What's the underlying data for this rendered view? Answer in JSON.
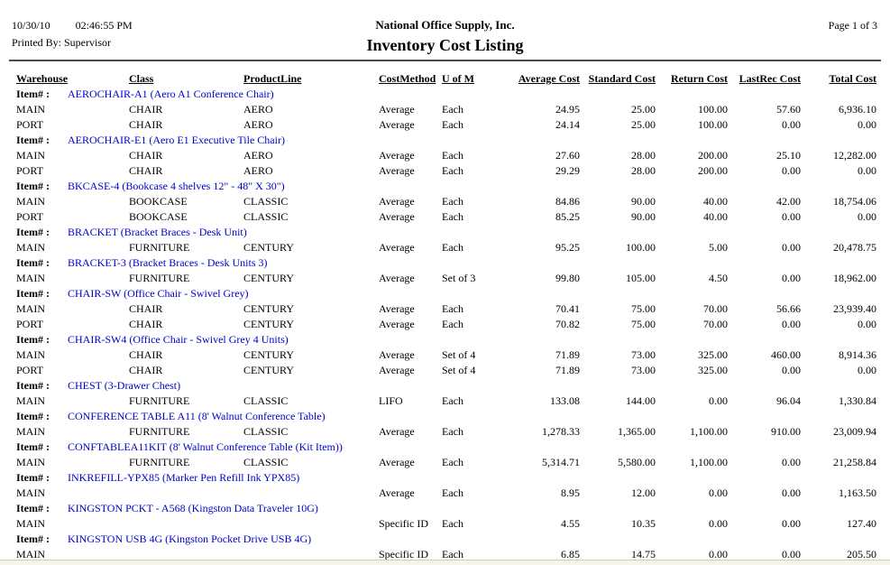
{
  "report": {
    "date": "10/30/10",
    "time": "02:46:55 PM",
    "printed_by": "Printed By: Supervisor",
    "company": "National Office Supply, Inc.",
    "title": "Inventory Cost Listing",
    "page": "Page 1 of 3"
  },
  "colors": {
    "link_blue": "#0000CC",
    "rule_gray": "#4a4a4a",
    "window_edge": "#f6f3e8"
  },
  "table": {
    "item_label": "Item# :",
    "columns": [
      "Warehouse",
      "Class",
      "ProductLine",
      "CostMethod",
      "U of M",
      "Average Cost",
      "Standard Cost",
      "Return Cost",
      "LastRec Cost",
      "Total Cost"
    ],
    "column_keys": [
      "warehouse",
      "class",
      "productline",
      "costmethod",
      "uofm",
      "average-cost",
      "standard-cost",
      "return-cost",
      "lastrec-cost",
      "total-cost"
    ],
    "groups": [
      {
        "code_desc": "AEROCHAIR-A1 (Aero A1 Conference Chair)",
        "rows": [
          [
            "MAIN",
            "CHAIR",
            "AERO",
            "Average",
            "Each",
            "24.95",
            "25.00",
            "100.00",
            "57.60",
            "6,936.10"
          ],
          [
            "PORT",
            "CHAIR",
            "AERO",
            "Average",
            "Each",
            "24.14",
            "25.00",
            "100.00",
            "0.00",
            "0.00"
          ]
        ]
      },
      {
        "code_desc": "AEROCHAIR-E1 (Aero E1 Executive Tile Chair)",
        "rows": [
          [
            "MAIN",
            "CHAIR",
            "AERO",
            "Average",
            "Each",
            "27.60",
            "28.00",
            "200.00",
            "25.10",
            "12,282.00"
          ],
          [
            "PORT",
            "CHAIR",
            "AERO",
            "Average",
            "Each",
            "29.29",
            "28.00",
            "200.00",
            "0.00",
            "0.00"
          ]
        ]
      },
      {
        "code_desc": "BKCASE-4 (Bookcase 4 shelves 12\" - 48\" X 30\")",
        "rows": [
          [
            "MAIN",
            "BOOKCASE",
            "CLASSIC",
            "Average",
            "Each",
            "84.86",
            "90.00",
            "40.00",
            "42.00",
            "18,754.06"
          ],
          [
            "PORT",
            "BOOKCASE",
            "CLASSIC",
            "Average",
            "Each",
            "85.25",
            "90.00",
            "40.00",
            "0.00",
            "0.00"
          ]
        ]
      },
      {
        "code_desc": "BRACKET (Bracket Braces - Desk Unit)",
        "rows": [
          [
            "MAIN",
            "FURNITURE",
            "CENTURY",
            "Average",
            "Each",
            "95.25",
            "100.00",
            "5.00",
            "0.00",
            "20,478.75"
          ]
        ]
      },
      {
        "code_desc": "BRACKET-3 (Bracket Braces - Desk Units 3)",
        "rows": [
          [
            "MAIN",
            "FURNITURE",
            "CENTURY",
            "Average",
            "Set of 3",
            "99.80",
            "105.00",
            "4.50",
            "0.00",
            "18,962.00"
          ]
        ]
      },
      {
        "code_desc": "CHAIR-SW (Office Chair - Swivel Grey)",
        "rows": [
          [
            "MAIN",
            "CHAIR",
            "CENTURY",
            "Average",
            "Each",
            "70.41",
            "75.00",
            "70.00",
            "56.66",
            "23,939.40"
          ],
          [
            "PORT",
            "CHAIR",
            "CENTURY",
            "Average",
            "Each",
            "70.82",
            "75.00",
            "70.00",
            "0.00",
            "0.00"
          ]
        ]
      },
      {
        "code_desc": "CHAIR-SW4 (Office Chair - Swivel Grey 4 Units)",
        "rows": [
          [
            "MAIN",
            "CHAIR",
            "CENTURY",
            "Average",
            "Set of 4",
            "71.89",
            "73.00",
            "325.00",
            "460.00",
            "8,914.36"
          ],
          [
            "PORT",
            "CHAIR",
            "CENTURY",
            "Average",
            "Set of 4",
            "71.89",
            "73.00",
            "325.00",
            "0.00",
            "0.00"
          ]
        ]
      },
      {
        "code_desc": "CHEST (3-Drawer Chest)",
        "rows": [
          [
            "MAIN",
            "FURNITURE",
            "CLASSIC",
            "LIFO",
            "Each",
            "133.08",
            "144.00",
            "0.00",
            "96.04",
            "1,330.84"
          ]
        ]
      },
      {
        "code_desc": "CONFERENCE TABLE A11 (8' Walnut Conference Table)",
        "rows": [
          [
            "MAIN",
            "FURNITURE",
            "CLASSIC",
            "Average",
            "Each",
            "1,278.33",
            "1,365.00",
            "1,100.00",
            "910.00",
            "23,009.94"
          ]
        ]
      },
      {
        "code_desc": "CONFTABLEA11KIT (8' Walnut Conference Table (Kit Item))",
        "rows": [
          [
            "MAIN",
            "FURNITURE",
            "CLASSIC",
            "Average",
            "Each",
            "5,314.71",
            "5,580.00",
            "1,100.00",
            "0.00",
            "21,258.84"
          ]
        ]
      },
      {
        "code_desc": "INKREFILL-YPX85 (Marker Pen Refill Ink YPX85)",
        "rows": [
          [
            "MAIN",
            "",
            "",
            "Average",
            "Each",
            "8.95",
            "12.00",
            "0.00",
            "0.00",
            "1,163.50"
          ]
        ]
      },
      {
        "code_desc": "KINGSTON PCKT - A568 (Kingston Data Traveler 10G)",
        "rows": [
          [
            "MAIN",
            "",
            "",
            "Specific ID",
            "Each",
            "4.55",
            "10.35",
            "0.00",
            "0.00",
            "127.40"
          ]
        ]
      },
      {
        "code_desc": "KINGSTON USB 4G (Kingston Pocket Drive USB 4G)",
        "rows": [
          [
            "MAIN",
            "",
            "",
            "Specific ID",
            "Each",
            "6.85",
            "14.75",
            "0.00",
            "0.00",
            "205.50"
          ]
        ]
      }
    ]
  }
}
